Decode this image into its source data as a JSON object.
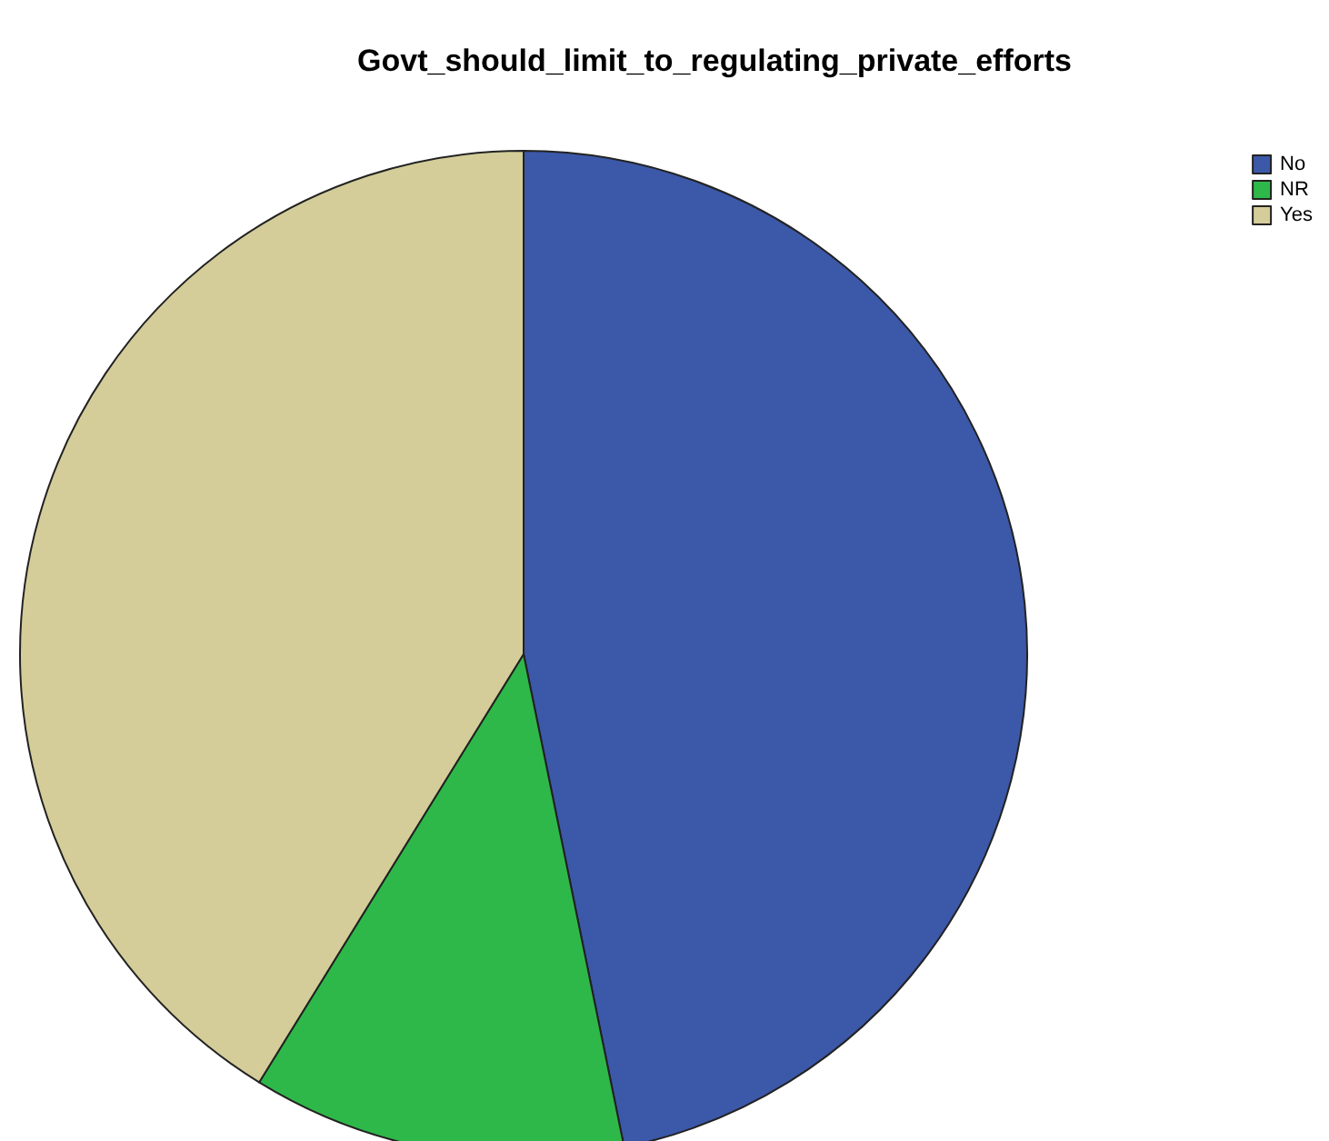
{
  "chart_data": {
    "type": "pie",
    "title": "Govt_should_limit_to_regulating_private_efforts",
    "categories": [
      "No",
      "NR",
      "Yes"
    ],
    "values": [
      46.8,
      12.0,
      41.2
    ],
    "colors": [
      "#3c58a8",
      "#2fb84a",
      "#d4cd99"
    ],
    "legend": "top right"
  }
}
